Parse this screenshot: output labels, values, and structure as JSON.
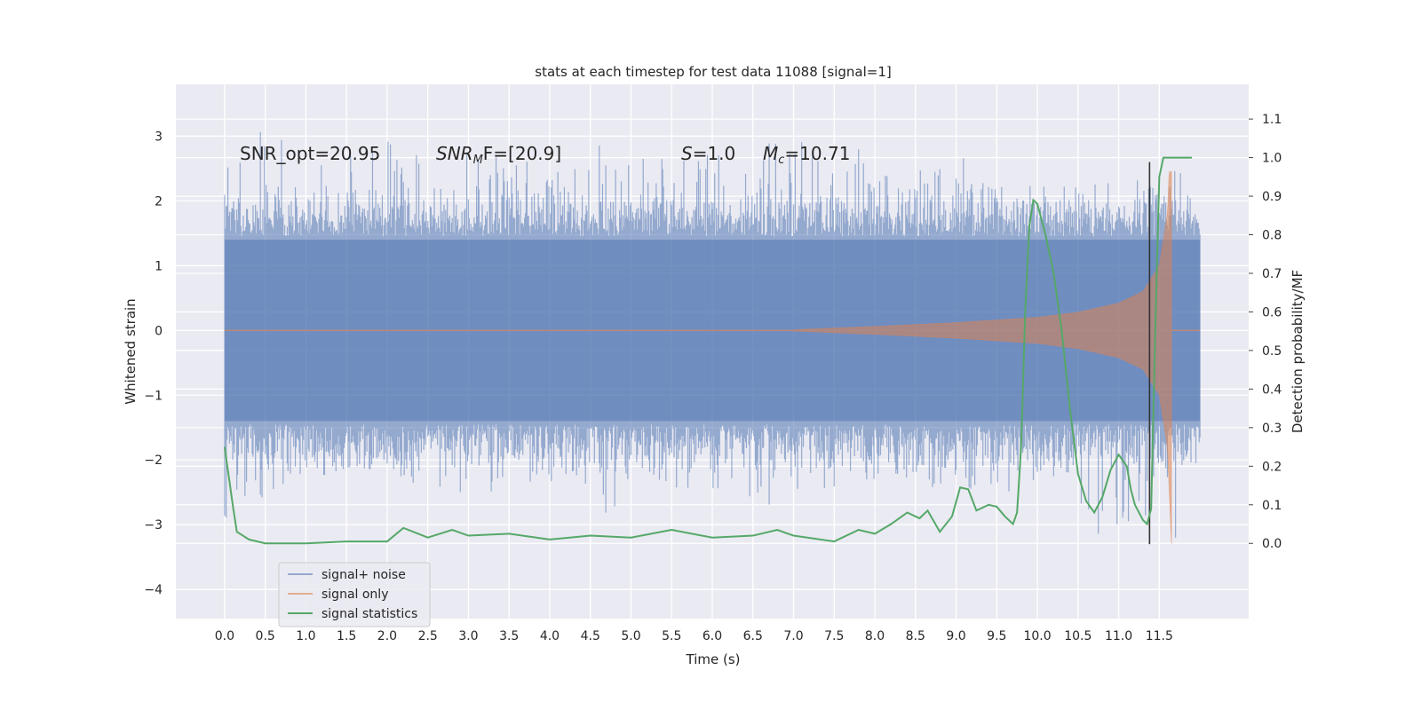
{
  "chart_data": {
    "type": "line",
    "title": "stats at each timestep for test data 11088 [signal=1]",
    "xlabel": "Time (s)",
    "ylabel_left": "Whitened strain",
    "ylabel_right": "Detection probability/MF",
    "xlim": [
      -0.6,
      12.6
    ],
    "ylim_left": [
      -4.45,
      3.8
    ],
    "ylim_right": [
      -0.195,
      1.19
    ],
    "x_ticks": [
      "0.0",
      "0.5",
      "1.0",
      "1.5",
      "2.0",
      "2.5",
      "3.0",
      "3.5",
      "4.0",
      "4.5",
      "5.0",
      "5.5",
      "6.0",
      "6.5",
      "7.0",
      "7.5",
      "8.0",
      "8.5",
      "9.0",
      "9.5",
      "10.0",
      "10.5",
      "11.0",
      "11.5"
    ],
    "y_ticks_left": [
      "3",
      "2",
      "1",
      "0",
      "−1",
      "−2",
      "−3",
      "−4"
    ],
    "y_ticks_right": [
      "1.1",
      "1.0",
      "0.9",
      "0.8",
      "0.7",
      "0.6",
      "0.5",
      "0.4",
      "0.3",
      "0.2",
      "0.1",
      "0.0"
    ],
    "grid": true,
    "legend_position": "lower-left",
    "annotations": {
      "snr_opt": "SNR_opt=20.95",
      "snr_mf_sym": "SNR",
      "snr_mf_sub": "M",
      "snr_mf_rest": "F=[20.9]",
      "s_sym": "S",
      "s_rest": "=1.0",
      "mc_sym": "M",
      "mc_sub": "c",
      "mc_rest": "=10.71"
    },
    "series": [
      {
        "name": "signal+ noise",
        "color": "#4c72b0",
        "x_range": [
          0.0,
          12.0
        ],
        "envelope_max": [
          2.9,
          3.17,
          2.8,
          2.9,
          2.95,
          2.8,
          2.85,
          2.6,
          2.75,
          2.9,
          2.8,
          2.8,
          2.7,
          3.45,
          2.75,
          2.8,
          2.7,
          2.7,
          2.6,
          2.3,
          2.2,
          2.3,
          2.4,
          3.3
        ],
        "envelope_min": [
          -3.2,
          -2.5,
          -2.3,
          -2.1,
          -2.2,
          -2.7,
          -2.8,
          -2.4,
          -2.3,
          -2.9,
          -2.3,
          -2.5,
          -2.7,
          -2.8,
          -2.5,
          -2.3,
          -2.3,
          -2.5,
          -2.6,
          -2.4,
          -2.7,
          -3.5,
          -3.0,
          -4.1
        ]
      },
      {
        "name": "signal only",
        "color": "#dd8452",
        "x_range": [
          0.0,
          12.0
        ],
        "chirp_amplitude": [
          {
            "t": 7.0,
            "amp": 0.01
          },
          {
            "t": 8.0,
            "amp": 0.06
          },
          {
            "t": 9.0,
            "amp": 0.12
          },
          {
            "t": 10.0,
            "amp": 0.2
          },
          {
            "t": 10.5,
            "amp": 0.28
          },
          {
            "t": 11.0,
            "amp": 0.42
          },
          {
            "t": 11.3,
            "amp": 0.6
          },
          {
            "t": 11.5,
            "amp": 1.0
          },
          {
            "t": 11.6,
            "amp": 1.8
          },
          {
            "t": 11.65,
            "amp": 3.3
          }
        ]
      },
      {
        "name": "signal statistics",
        "color": "#55a868",
        "axis": "right",
        "x": [
          0.0,
          0.1,
          0.15,
          0.3,
          0.5,
          1.0,
          1.5,
          2.0,
          2.2,
          2.5,
          2.8,
          3.0,
          3.5,
          4.0,
          4.5,
          5.0,
          5.5,
          6.0,
          6.5,
          6.8,
          7.0,
          7.5,
          7.8,
          8.0,
          8.2,
          8.4,
          8.55,
          8.65,
          8.8,
          8.95,
          9.05,
          9.15,
          9.25,
          9.4,
          9.5,
          9.6,
          9.7,
          9.75,
          9.8,
          9.85,
          9.9,
          9.95,
          10.0,
          10.1,
          10.2,
          10.3,
          10.4,
          10.5,
          10.6,
          10.7,
          10.8,
          10.9,
          11.0,
          11.1,
          11.15,
          11.2,
          11.3,
          11.35,
          11.4,
          11.45,
          11.5,
          11.55,
          11.6,
          11.7,
          11.8,
          11.9
        ],
        "y": [
          0.25,
          0.1,
          0.03,
          0.01,
          0.0,
          0.0,
          0.005,
          0.005,
          0.04,
          0.015,
          0.035,
          0.02,
          0.025,
          0.01,
          0.02,
          0.015,
          0.035,
          0.015,
          0.02,
          0.035,
          0.02,
          0.005,
          0.035,
          0.025,
          0.05,
          0.08,
          0.065,
          0.085,
          0.03,
          0.07,
          0.145,
          0.14,
          0.085,
          0.1,
          0.095,
          0.07,
          0.05,
          0.08,
          0.25,
          0.6,
          0.82,
          0.89,
          0.88,
          0.8,
          0.7,
          0.55,
          0.35,
          0.18,
          0.11,
          0.08,
          0.12,
          0.19,
          0.23,
          0.2,
          0.14,
          0.1,
          0.06,
          0.05,
          0.09,
          0.55,
          0.95,
          1.0,
          1.0,
          1.0,
          1.0,
          1.0
        ]
      }
    ],
    "marker_line": {
      "x": 11.38,
      "y_top": 2.6,
      "y_bottom": -3.3,
      "color": "#333333"
    }
  }
}
